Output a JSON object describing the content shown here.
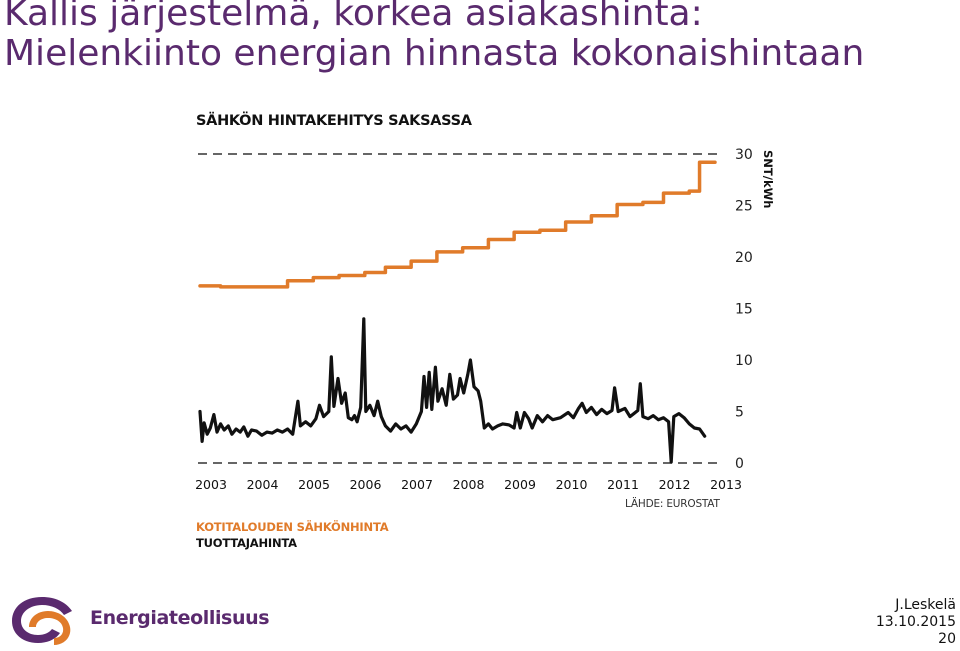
{
  "slide": {
    "title_line1": "Kallis järjestelmä, korkea asiakashinta:",
    "title_line2": "Mielenkiinto energian hinnasta kokonaishintaan"
  },
  "chart_data": {
    "type": "line",
    "title": "SÄHKÖN HINTAKEHITYS SAKSASSA",
    "ylabel": "SNT/kWh",
    "ylim": [
      0,
      30
    ],
    "yticks": [
      "0",
      "5",
      "10",
      "15",
      "20",
      "25",
      "30"
    ],
    "xticks": [
      "2003",
      "2004",
      "2005",
      "2006",
      "2007",
      "2008",
      "2009",
      "2010",
      "2011",
      "2012",
      "2013"
    ],
    "grid": "dashed lines at 0 and 30",
    "legend_position": "bottom-left",
    "source": "LÄHDE: EUROSTAT",
    "series": [
      {
        "name": "KOTITALOUDEN SÄHKÖNHINTA",
        "color": "#e07b2a",
        "points": [
          [
            2003.0,
            17.2
          ],
          [
            2003.4,
            17.1
          ],
          [
            2004.2,
            17.1
          ],
          [
            2004.7,
            17.7
          ],
          [
            2005.2,
            18.0
          ],
          [
            2005.7,
            18.2
          ],
          [
            2006.2,
            18.5
          ],
          [
            2006.6,
            19.0
          ],
          [
            2007.1,
            19.6
          ],
          [
            2007.6,
            20.5
          ],
          [
            2008.1,
            20.9
          ],
          [
            2008.6,
            21.7
          ],
          [
            2009.1,
            22.4
          ],
          [
            2009.6,
            22.6
          ],
          [
            2010.1,
            23.4
          ],
          [
            2010.6,
            24.0
          ],
          [
            2011.1,
            25.1
          ],
          [
            2011.6,
            25.3
          ],
          [
            2012.0,
            26.2
          ],
          [
            2012.5,
            26.4
          ],
          [
            2012.7,
            29.2
          ],
          [
            2013.0,
            29.2
          ]
        ]
      },
      {
        "name": "TUOTTAJAHINTA",
        "color": "#111111",
        "points": [
          [
            2003.0,
            5.0
          ],
          [
            2003.04,
            2.1
          ],
          [
            2003.08,
            3.9
          ],
          [
            2003.14,
            2.8
          ],
          [
            2003.2,
            3.4
          ],
          [
            2003.27,
            4.7
          ],
          [
            2003.33,
            3.0
          ],
          [
            2003.4,
            3.8
          ],
          [
            2003.47,
            3.2
          ],
          [
            2003.55,
            3.6
          ],
          [
            2003.62,
            2.8
          ],
          [
            2003.7,
            3.3
          ],
          [
            2003.78,
            3.0
          ],
          [
            2003.85,
            3.5
          ],
          [
            2003.93,
            2.6
          ],
          [
            2004.0,
            3.2
          ],
          [
            2004.1,
            3.1
          ],
          [
            2004.2,
            2.7
          ],
          [
            2004.3,
            3.0
          ],
          [
            2004.4,
            2.9
          ],
          [
            2004.5,
            3.2
          ],
          [
            2004.6,
            3.0
          ],
          [
            2004.7,
            3.3
          ],
          [
            2004.8,
            2.8
          ],
          [
            2004.9,
            6.0
          ],
          [
            2004.95,
            3.6
          ],
          [
            2005.05,
            4.0
          ],
          [
            2005.15,
            3.6
          ],
          [
            2005.25,
            4.3
          ],
          [
            2005.32,
            5.6
          ],
          [
            2005.4,
            4.5
          ],
          [
            2005.5,
            5.0
          ],
          [
            2005.55,
            10.3
          ],
          [
            2005.6,
            5.5
          ],
          [
            2005.68,
            8.2
          ],
          [
            2005.75,
            5.8
          ],
          [
            2005.82,
            6.8
          ],
          [
            2005.88,
            4.4
          ],
          [
            2005.95,
            4.2
          ],
          [
            2006.0,
            4.6
          ],
          [
            2006.05,
            4.0
          ],
          [
            2006.12,
            5.4
          ],
          [
            2006.18,
            14.0
          ],
          [
            2006.22,
            5.0
          ],
          [
            2006.3,
            5.6
          ],
          [
            2006.38,
            4.6
          ],
          [
            2006.45,
            6.0
          ],
          [
            2006.52,
            4.5
          ],
          [
            2006.6,
            3.6
          ],
          [
            2006.7,
            3.1
          ],
          [
            2006.8,
            3.8
          ],
          [
            2006.9,
            3.3
          ],
          [
            2007.0,
            3.6
          ],
          [
            2007.1,
            3.0
          ],
          [
            2007.2,
            3.8
          ],
          [
            2007.3,
            5.0
          ],
          [
            2007.35,
            8.4
          ],
          [
            2007.4,
            5.4
          ],
          [
            2007.45,
            8.8
          ],
          [
            2007.5,
            5.2
          ],
          [
            2007.57,
            9.3
          ],
          [
            2007.62,
            6.0
          ],
          [
            2007.7,
            7.2
          ],
          [
            2007.78,
            5.6
          ],
          [
            2007.85,
            8.6
          ],
          [
            2007.92,
            6.2
          ],
          [
            2008.0,
            6.6
          ],
          [
            2008.05,
            8.2
          ],
          [
            2008.12,
            6.8
          ],
          [
            2008.2,
            8.6
          ],
          [
            2008.25,
            10.0
          ],
          [
            2008.32,
            7.4
          ],
          [
            2008.4,
            7.0
          ],
          [
            2008.45,
            6.0
          ],
          [
            2008.52,
            3.4
          ],
          [
            2008.6,
            3.8
          ],
          [
            2008.68,
            3.3
          ],
          [
            2008.78,
            3.6
          ],
          [
            2008.88,
            3.8
          ],
          [
            2009.0,
            3.7
          ],
          [
            2009.1,
            3.4
          ],
          [
            2009.15,
            4.9
          ],
          [
            2009.22,
            3.4
          ],
          [
            2009.3,
            4.9
          ],
          [
            2009.38,
            4.3
          ],
          [
            2009.45,
            3.4
          ],
          [
            2009.55,
            4.6
          ],
          [
            2009.65,
            4.0
          ],
          [
            2009.75,
            4.6
          ],
          [
            2009.85,
            4.2
          ],
          [
            2010.0,
            4.4
          ],
          [
            2010.15,
            4.9
          ],
          [
            2010.25,
            4.4
          ],
          [
            2010.35,
            5.3
          ],
          [
            2010.42,
            5.8
          ],
          [
            2010.5,
            4.9
          ],
          [
            2010.6,
            5.4
          ],
          [
            2010.7,
            4.7
          ],
          [
            2010.8,
            5.2
          ],
          [
            2010.9,
            4.8
          ],
          [
            2011.0,
            5.1
          ],
          [
            2011.05,
            7.3
          ],
          [
            2011.12,
            5.0
          ],
          [
            2011.25,
            5.3
          ],
          [
            2011.35,
            4.5
          ],
          [
            2011.5,
            5.1
          ],
          [
            2011.55,
            7.7
          ],
          [
            2011.6,
            4.5
          ],
          [
            2011.7,
            4.3
          ],
          [
            2011.8,
            4.6
          ],
          [
            2011.9,
            4.2
          ],
          [
            2012.0,
            4.4
          ],
          [
            2012.1,
            4.0
          ],
          [
            2012.15,
            0.1
          ],
          [
            2012.2,
            4.5
          ],
          [
            2012.3,
            4.8
          ],
          [
            2012.4,
            4.4
          ],
          [
            2012.5,
            3.8
          ],
          [
            2012.6,
            3.4
          ],
          [
            2012.7,
            3.3
          ],
          [
            2012.8,
            2.6
          ]
        ]
      }
    ]
  },
  "footer": {
    "author": "J.Leskelä",
    "date": "13.10.2015",
    "page": "20",
    "logo_text": "Energiateollisuus"
  },
  "colors": {
    "title": "#5a2a6e",
    "household": "#e07b2a",
    "producer": "#111111",
    "logo_purple": "#5a2a6e",
    "logo_orange": "#e07b2a"
  }
}
